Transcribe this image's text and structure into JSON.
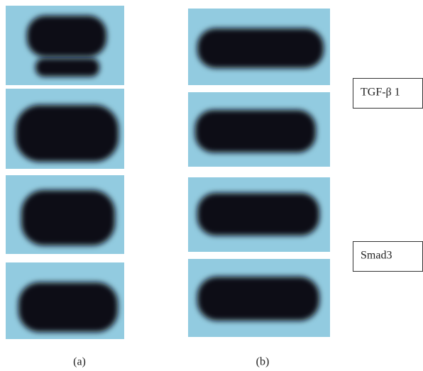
{
  "labels": [
    "TGF-β 1",
    "Smad3"
  ],
  "panels": [
    "(a)",
    "(b)"
  ]
}
